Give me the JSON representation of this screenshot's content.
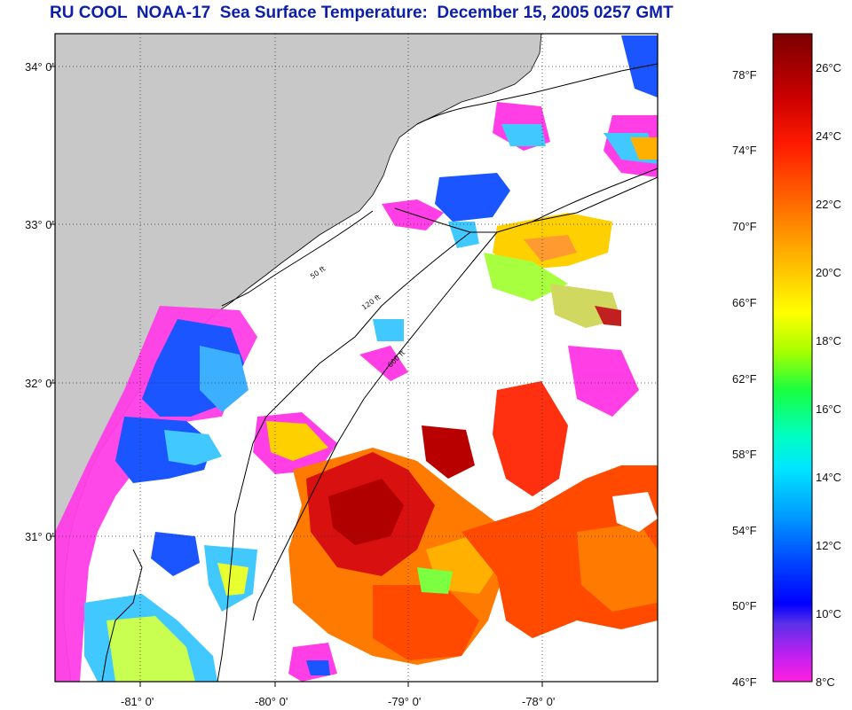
{
  "title": "RU COOL  NOAA-17  Sea Surface Temperature:  December 15, 2005 0257 GMT",
  "map": {
    "lat_labels": [
      "34° 0'",
      "33° 0'",
      "32° 0'",
      "31° 0'"
    ],
    "lon_labels": [
      "-81° 0'",
      "-80° 0'",
      "-79° 0'",
      "-78° 0'"
    ],
    "contour_labels": [
      "50 ft",
      "120 ft",
      "600 ft"
    ]
  },
  "colorbar": {
    "fahrenheit_labels": [
      "78°F",
      "74°F",
      "70°F",
      "66°F",
      "62°F",
      "58°F",
      "54°F",
      "50°F",
      "46°F"
    ],
    "celsius_labels": [
      "26°C",
      "24°C",
      "22°C",
      "20°C",
      "18°C",
      "16°C",
      "14°C",
      "12°C",
      "10°C",
      "8°C"
    ],
    "colors": [
      "#7a0000",
      "#ff0000",
      "#ff8a00",
      "#ffff00",
      "#19ff40",
      "#00ffff",
      "#00a0ff",
      "#0000ff",
      "#8a30e0",
      "#ff00ff"
    ]
  }
}
